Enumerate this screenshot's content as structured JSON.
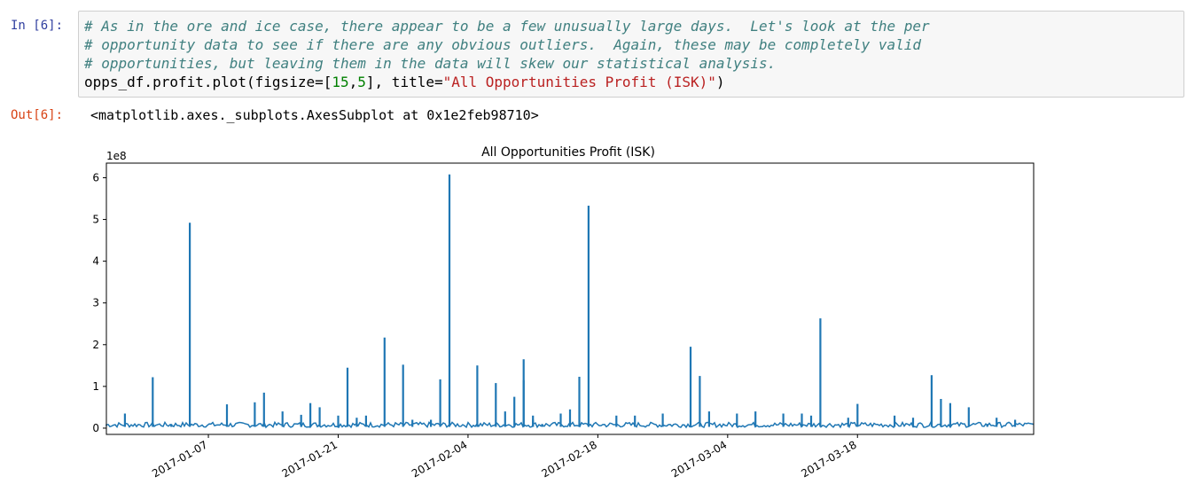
{
  "in_cell": {
    "prompt": "In [6]:",
    "code": {
      "comment_1": "# As in the ore and ice case, there appear to be a few unusually large days.  Let's look at the per",
      "comment_2": "# opportunity data to see if there are any obvious outliers.  Again, these may be completely valid",
      "comment_3": "# opportunities, but leaving them in the data will skew our statistical analysis.",
      "line4_a": "opps_df.profit.plot(figsize=[",
      "line4_n1": "15",
      "line4_comma": ",",
      "line4_n2": "5",
      "line4_b": "], title=",
      "line4_str": "\"All Opportunities Profit (ISK)\"",
      "line4_c": ")"
    }
  },
  "out_cell": {
    "prompt": "Out[6]:",
    "text": "<matplotlib.axes._subplots.AxesSubplot at 0x1e2feb98710>"
  },
  "colors": {
    "line": "#1f77b4",
    "in_prompt": "#303f9f",
    "out_prompt": "#d84315"
  },
  "chart_data": {
    "type": "line",
    "title": "All Opportunities Profit (ISK)",
    "xlabel": "",
    "ylabel": "",
    "y_multiplier_label": "1e8",
    "y_scale": 100000000,
    "xlim": [
      "2016-12-27",
      "2017-04-06"
    ],
    "ylim": [
      -0.15,
      6.35
    ],
    "y_ticks": [
      0,
      1,
      2,
      3,
      4,
      5,
      6
    ],
    "y_tick_labels": [
      "0",
      "1",
      "2",
      "3",
      "4",
      "5",
      "6"
    ],
    "x_ticks": [
      "2017-01-07",
      "2017-01-21",
      "2017-02-04",
      "2017-02-18",
      "2017-03-04",
      "2017-03-18"
    ],
    "grid": false,
    "legend": "none",
    "series": [
      {
        "x": [
          "2016-12-29",
          "2017-01-01",
          "2017-01-03",
          "2017-01-05",
          "2017-01-09",
          "2017-01-12",
          "2017-01-13",
          "2017-01-15",
          "2017-01-17",
          "2017-01-18",
          "2017-01-19",
          "2017-01-21",
          "2017-01-22",
          "2017-01-23",
          "2017-01-24",
          "2017-01-26",
          "2017-01-28",
          "2017-01-29",
          "2017-01-31",
          "2017-02-01",
          "2017-02-02",
          "2017-02-05",
          "2017-02-07",
          "2017-02-08",
          "2017-02-09",
          "2017-02-10",
          "2017-02-10",
          "2017-02-11",
          "2017-02-11",
          "2017-02-12",
          "2017-02-14",
          "2017-02-15",
          "2017-02-16",
          "2017-02-17",
          "2017-02-20",
          "2017-02-22",
          "2017-02-25",
          "2017-02-28",
          "2017-03-01",
          "2017-03-02",
          "2017-03-05",
          "2017-03-07",
          "2017-03-10",
          "2017-03-12",
          "2017-03-13",
          "2017-03-14",
          "2017-03-17",
          "2017-03-18",
          "2017-03-22",
          "2017-03-24",
          "2017-03-26",
          "2017-03-27",
          "2017-03-28",
          "2017-03-30",
          "2017-04-01",
          "2017-04-02",
          "2017-04-04"
        ],
        "values": [
          0.35,
          1.22,
          0.1,
          4.92,
          0.57,
          0.62,
          0.85,
          0.4,
          0.32,
          0.6,
          0.5,
          0.3,
          1.45,
          0.25,
          0.3,
          2.17,
          1.52,
          0.2,
          0.2,
          1.17,
          6.08,
          1.5,
          1.08,
          0.4,
          0.75,
          1.15,
          1.65,
          0.2,
          0.3,
          0.1,
          0.35,
          0.45,
          1.23,
          5.33,
          0.3,
          0.3,
          0.35,
          1.95,
          1.25,
          0.4,
          0.35,
          0.4,
          0.35,
          0.35,
          0.3,
          2.63,
          0.25,
          0.58,
          0.3,
          0.25,
          1.27,
          0.7,
          0.6,
          0.5,
          0.1,
          0.25,
          0.2
        ]
      }
    ]
  }
}
